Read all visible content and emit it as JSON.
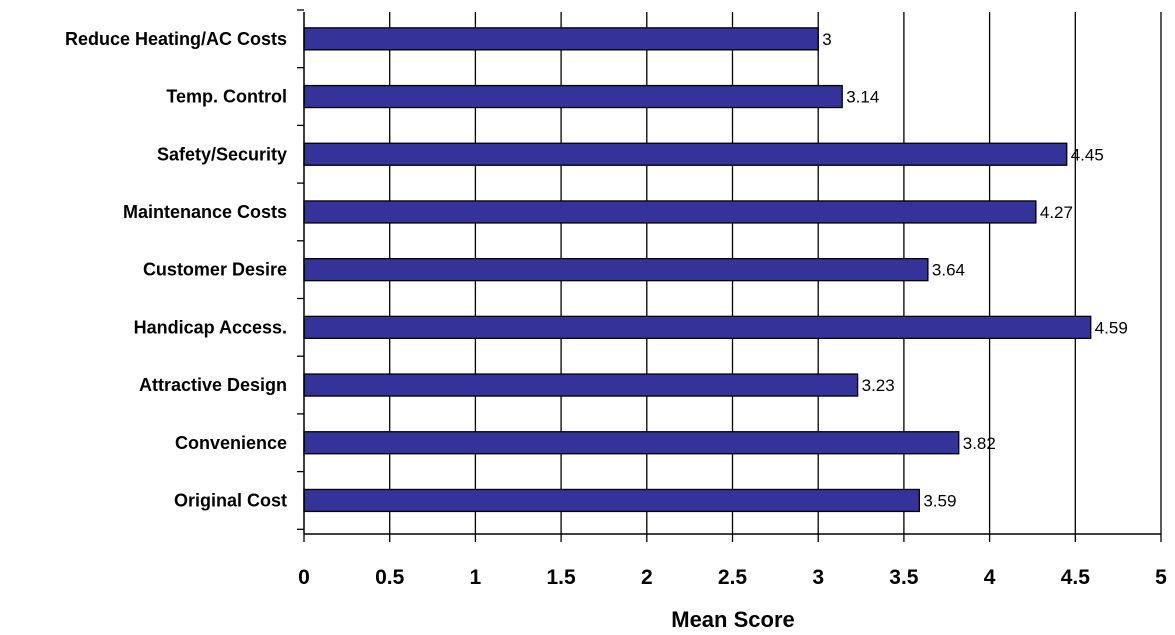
{
  "chart_data": {
    "type": "bar",
    "orientation": "horizontal",
    "title": "",
    "xlabel": "Mean Score",
    "ylabel": "",
    "xlim": [
      0,
      5
    ],
    "x_ticks": [
      0,
      0.5,
      1,
      1.5,
      2,
      2.5,
      3,
      3.5,
      4,
      4.5,
      5
    ],
    "x_tick_labels": [
      "0",
      "0.5",
      "1",
      "1.5",
      "2",
      "2.5",
      "3",
      "3.5",
      "4",
      "4.5",
      "5"
    ],
    "grid": "vertical",
    "legend": "none",
    "categories": [
      "Reduce Heating/AC Costs",
      "Temp. Control",
      "Safety/Security",
      "Maintenance Costs",
      "Customer Desire",
      "Handicap Access.",
      "Attractive Design",
      "Convenience",
      "Original Cost"
    ],
    "values": [
      3,
      3.14,
      4.45,
      4.27,
      3.64,
      4.59,
      3.23,
      3.82,
      3.59
    ],
    "value_labels": [
      "3",
      "3.14",
      "4.45",
      "4.27",
      "3.64",
      "4.59",
      "3.23",
      "3.82",
      "3.59"
    ],
    "colors": {
      "bar_fill": "#333399",
      "bar_stroke": "#000000",
      "grid": "#000000",
      "background": "#ffffff"
    }
  }
}
